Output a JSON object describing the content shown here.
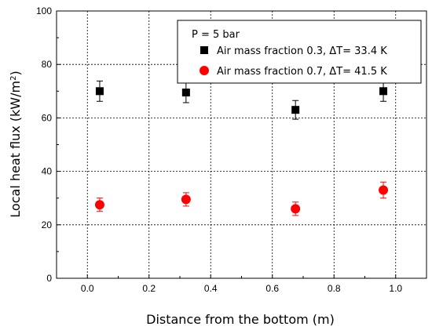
{
  "chart_data": {
    "type": "scatter",
    "title": "",
    "xlabel": "Distance from the bottom (m)",
    "ylabel_main": "Local heat flux (kW/m",
    "ylabel_sup": "2",
    "ylabel_tail": ")",
    "xlim": [
      -0.1,
      1.1
    ],
    "ylim": [
      0,
      100
    ],
    "x_ticks": [
      -0.1,
      0.0,
      0.1,
      0.2,
      0.3,
      0.4,
      0.5,
      0.6,
      0.7,
      0.8,
      0.9,
      1.0,
      1.1
    ],
    "x_tick_labels": [
      "0.0",
      "0.2",
      "0.4",
      "0.6",
      "0.8",
      "1.0"
    ],
    "x_tick_label_values": [
      0.0,
      0.2,
      0.4,
      0.6,
      0.8,
      1.0
    ],
    "y_tick_values": [
      0,
      20,
      40,
      60,
      80,
      100
    ],
    "y_tick_labels": [
      "0",
      "20",
      "40",
      "60",
      "80",
      "100"
    ],
    "grid": true,
    "legend_position": "top-right",
    "legend_header": "P = 5 bar",
    "series": [
      {
        "name": "Air mass fraction 0.3, ΔT= 33.4 K",
        "marker": "square",
        "color": "#000000",
        "x": [
          0.04,
          0.32,
          0.675,
          0.96
        ],
        "y": [
          70,
          69.5,
          63,
          70
        ],
        "yerr": [
          3.8,
          3.8,
          3.5,
          3.8
        ]
      },
      {
        "name": "Air mass fraction 0.7, ΔT= 41.5 K",
        "marker": "circle",
        "color": "#ff0000",
        "x": [
          0.04,
          0.32,
          0.675,
          0.96
        ],
        "y": [
          27.5,
          29.5,
          26,
          33
        ],
        "yerr": [
          2.5,
          2.5,
          2.5,
          3.0
        ]
      }
    ]
  }
}
